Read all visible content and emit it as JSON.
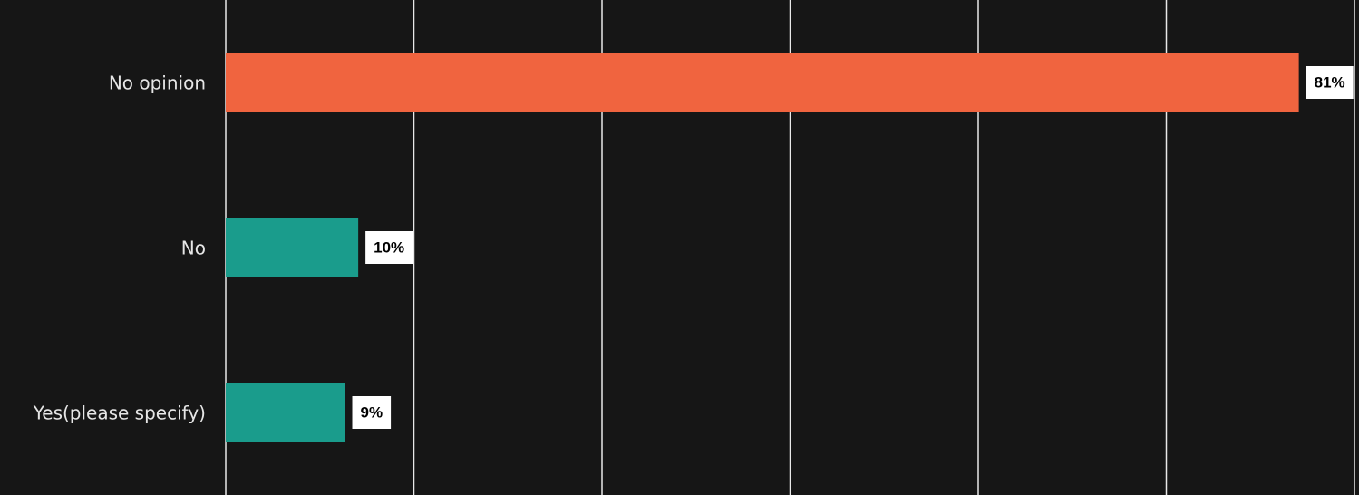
{
  "chart_data": {
    "type": "hbar",
    "categories": [
      "No opinion",
      "No",
      "Yes(please specify)"
    ],
    "values": [
      81,
      10,
      9
    ],
    "value_labels": [
      "81%",
      "10%",
      "9%"
    ],
    "colors": [
      "#f0643f",
      "#1a9c8c",
      "#1a9c8c"
    ],
    "xlim": [
      0,
      85.2
    ],
    "xticks": [
      0,
      14.2,
      28.4,
      42.6,
      56.8,
      71,
      85.2
    ],
    "grid": true
  }
}
